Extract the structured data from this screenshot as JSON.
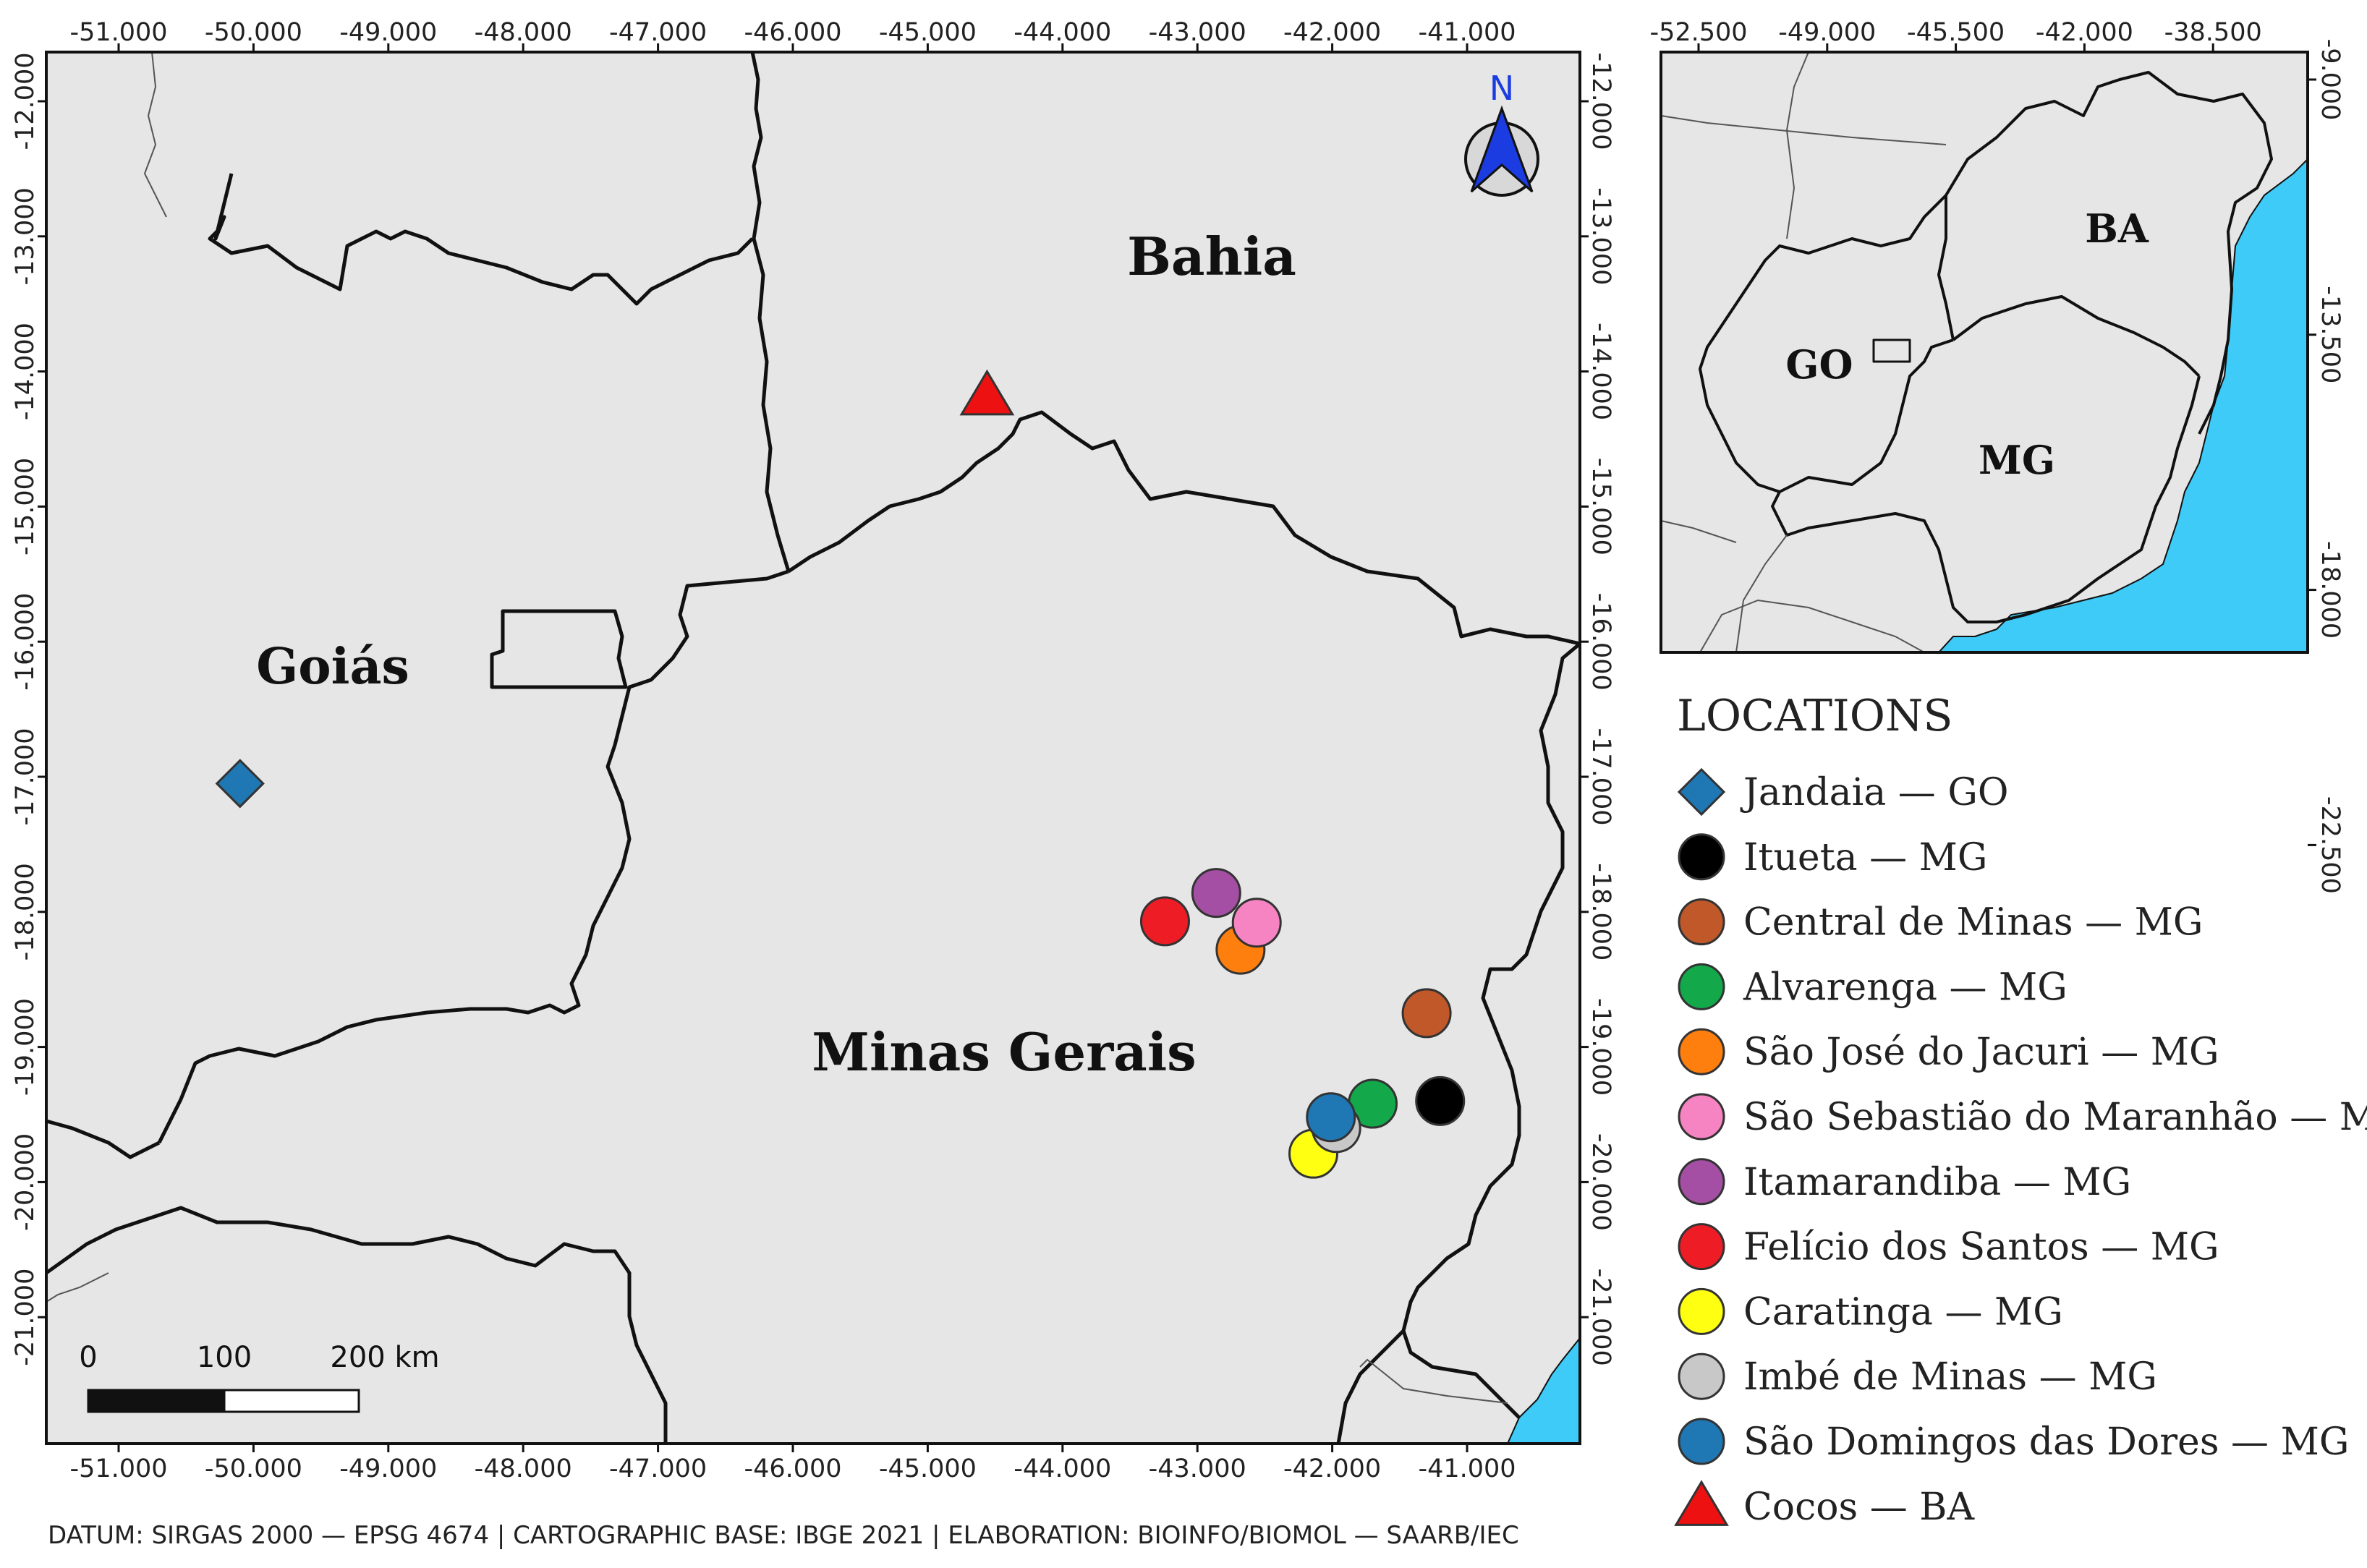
{
  "main_map": {
    "x_ticks": [
      {
        "label": "-51.000",
        "lon": -51
      },
      {
        "label": "-50.000",
        "lon": -50
      },
      {
        "label": "-49.000",
        "lon": -49
      },
      {
        "label": "-48.000",
        "lon": -48
      },
      {
        "label": "-47.000",
        "lon": -47
      },
      {
        "label": "-46.000",
        "lon": -46
      },
      {
        "label": "-45.000",
        "lon": -45
      },
      {
        "label": "-44.000",
        "lon": -44
      },
      {
        "label": "-43.000",
        "lon": -43
      },
      {
        "label": "-42.000",
        "lon": -42
      },
      {
        "label": "-41.000",
        "lon": -41
      }
    ],
    "y_ticks": [
      {
        "label": "-12.000",
        "lat": -12
      },
      {
        "label": "-13.000",
        "lat": -13
      },
      {
        "label": "-14.000",
        "lat": -14
      },
      {
        "label": "-15.000",
        "lat": -15
      },
      {
        "label": "-16.000",
        "lat": -16
      },
      {
        "label": "-17.000",
        "lat": -17
      },
      {
        "label": "-18.000",
        "lat": -18
      },
      {
        "label": "-19.000",
        "lat": -19
      },
      {
        "label": "-20.000",
        "lat": -20
      },
      {
        "label": "-21.000",
        "lat": -21
      }
    ],
    "region_labels": {
      "bahia": "Bahia",
      "goias": "Goiás",
      "minas_gerais": "Minas Gerais"
    },
    "north_label": "N",
    "scale_bar": {
      "labels": [
        "0",
        "100",
        "200 km"
      ]
    },
    "colors": {
      "land": "#e6e6e6",
      "water": "#3ecbf7",
      "border": "#111111",
      "north_arrow": "#1a3ce0"
    }
  },
  "inset_map": {
    "x_ticks": [
      {
        "label": "-52.500",
        "lon": -52.5
      },
      {
        "label": "-49.000",
        "lon": -49
      },
      {
        "label": "-45.500",
        "lon": -45.5
      },
      {
        "label": "-42.000",
        "lon": -42
      },
      {
        "label": "-38.500",
        "lon": -38.5
      }
    ],
    "y_ticks": [
      {
        "label": "-9.000",
        "lat": -9
      },
      {
        "label": "-13.500",
        "lat": -13.5
      },
      {
        "label": "-18.000",
        "lat": -18
      },
      {
        "label": "-22.500",
        "lat": -22.5
      }
    ],
    "region_labels": {
      "ba": "BA",
      "go": "GO",
      "mg": "MG"
    }
  },
  "legend": {
    "title": "LOCATIONS",
    "items": [
      {
        "label": "Jandaia — GO",
        "shape": "diamond",
        "color": "#1f77b4",
        "lon": -50.1,
        "lat": -17.05
      },
      {
        "label": "Itueta — MG",
        "shape": "circle",
        "color": "#000000",
        "lon": -41.2,
        "lat": -19.4
      },
      {
        "label": "Central de Minas — MG",
        "shape": "circle",
        "color": "#c0582a",
        "lon": -41.3,
        "lat": -18.75
      },
      {
        "label": "Alvarenga — MG",
        "shape": "circle",
        "color": "#13a84a",
        "lon": -41.7,
        "lat": -19.42
      },
      {
        "label": "São José do Jacuri — MG",
        "shape": "circle",
        "color": "#ff7f0e",
        "lon": -42.68,
        "lat": -18.28
      },
      {
        "label": "São Sebastião do Maranhão — MG",
        "shape": "circle",
        "color": "#f683c2",
        "lon": -42.56,
        "lat": -18.08
      },
      {
        "label": "Itamarandiba — MG",
        "shape": "circle",
        "color": "#a44fa3",
        "lon": -42.86,
        "lat": -17.86
      },
      {
        "label": "Felício dos Santos — MG",
        "shape": "circle",
        "color": "#ee1c25",
        "lon": -43.24,
        "lat": -18.07
      },
      {
        "label": "Caratinga — MG",
        "shape": "circle",
        "color": "#ffff11",
        "lon": -42.14,
        "lat": -19.79
      },
      {
        "label": "Imbé de Minas — MG",
        "shape": "circle",
        "color": "#c8c8c8",
        "lon": -41.97,
        "lat": -19.6
      },
      {
        "label": "São Domingos das Dores — MG",
        "shape": "circle",
        "color": "#1f77b4",
        "lon": -42.01,
        "lat": -19.52
      },
      {
        "label": "Cocos — BA",
        "shape": "triangle",
        "color": "#ee1111",
        "lon": -44.56,
        "lat": -14.18
      }
    ]
  },
  "footer": {
    "credit": "DATUM: SIRGAS 2000 — EPSG 4674 | CARTOGRAPHIC BASE: IBGE 2021 | ELABORATION: BIOINFO/BIOMOL — SAARB/IEC"
  }
}
